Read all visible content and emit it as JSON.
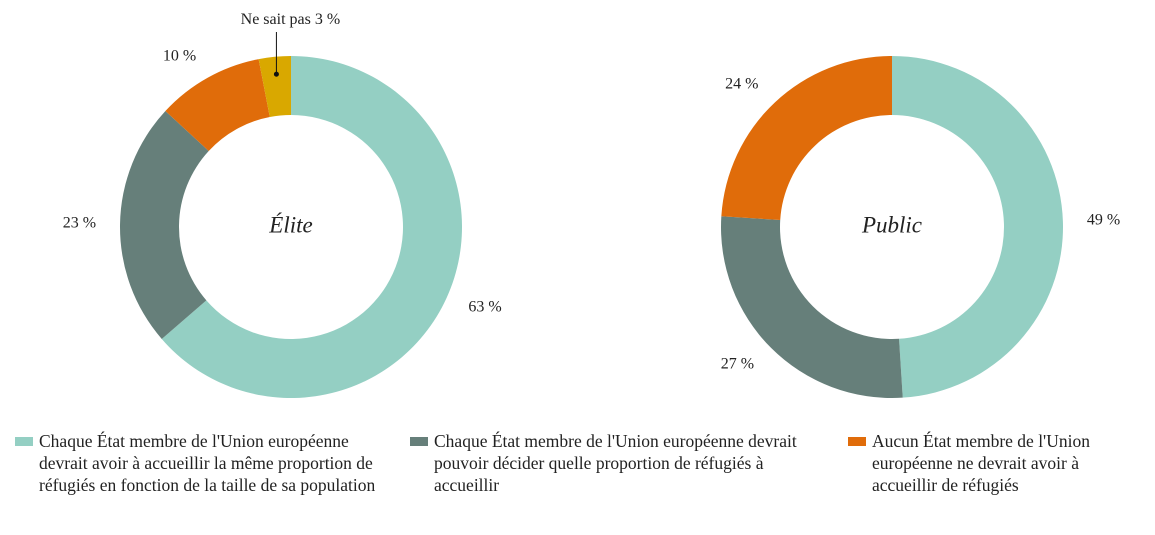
{
  "chart_data": [
    {
      "type": "pie",
      "title": "Élite",
      "categories": [
        "Chaque État membre de l'Union européenne devrait avoir à accueillir la même proportion de réfugiés en fonction de la taille de sa population",
        "Chaque État membre de l'Union européenne devrait pouvoir décider quelle proportion de réfugiés à accueillir",
        "Aucun État membre de l'Union européenne ne devrait avoir à accueillir de réfugiés",
        "Ne sait pas"
      ],
      "values": [
        63,
        23,
        10,
        3
      ],
      "value_labels": [
        "63 %",
        "23 %",
        "10 %",
        "3 %"
      ],
      "colors": [
        "#94cfc3",
        "#667f7a",
        "#e06c0a",
        "#d9a800"
      ]
    },
    {
      "type": "pie",
      "title": "Public",
      "values": [
        49,
        27,
        24
      ],
      "value_labels": [
        "49 %",
        "27 %",
        "24 %"
      ],
      "colors": [
        "#94cfc3",
        "#667f7a",
        "#e06c0a"
      ]
    }
  ]
}
